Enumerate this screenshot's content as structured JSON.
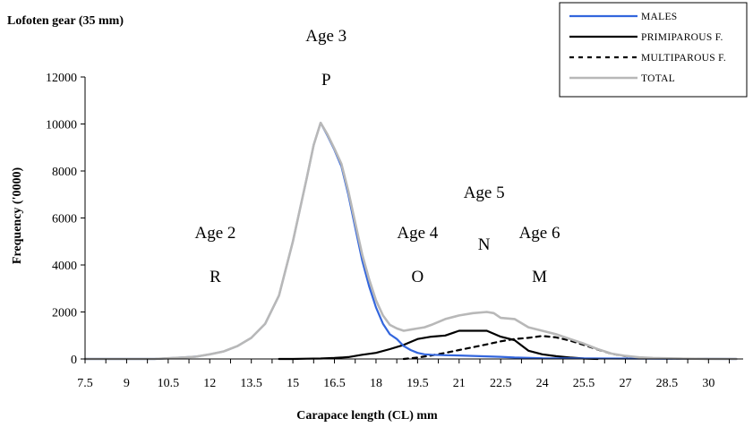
{
  "chart_data": {
    "type": "line",
    "title": "Lofoten gear (35 mm)",
    "xlabel": "Carapace length (CL) mm",
    "ylabel": "Frequency ('0000)",
    "x_tick_labels": [
      "7.5",
      "9",
      "10.5",
      "12",
      "13.5",
      "15",
      "16.5",
      "18",
      "19.5",
      "21",
      "22.5",
      "24",
      "25.5",
      "27",
      "28.5",
      "30"
    ],
    "y_ticks": [
      0,
      2000,
      4000,
      6000,
      8000,
      10000,
      12000
    ],
    "xlim": [
      7.5,
      31.25
    ],
    "ylim": [
      0,
      12000
    ],
    "grid": false,
    "legend_position": "top-right",
    "colors": {
      "MALES": "#3366dd",
      "PRIMIPAROUS F.": "#000000",
      "MULTIPAROUS F.": "#000000",
      "TOTAL": "#b8b8b8"
    },
    "annotations": [
      {
        "age": "Age 2",
        "letter": "R",
        "x": 12.2
      },
      {
        "age": "Age 3",
        "letter": "P",
        "x": 16.2
      },
      {
        "age": "Age 4",
        "letter": "O",
        "x": 19.5
      },
      {
        "age": "Age 5",
        "letter": "N",
        "x": 21.9
      },
      {
        "age": "Age 6",
        "letter": "M",
        "x": 23.9
      }
    ],
    "series": [
      {
        "name": "MALES",
        "style": "solid",
        "x": [
          7.5,
          10.0,
          10.5,
          11.0,
          11.5,
          12.0,
          12.5,
          13.0,
          13.5,
          14.0,
          14.5,
          15.0,
          15.5,
          15.75,
          16.0,
          16.25,
          16.5,
          16.75,
          17.0,
          17.25,
          17.5,
          17.75,
          18.0,
          18.25,
          18.5,
          18.75,
          19.0,
          19.25,
          19.5,
          19.75,
          20.0,
          20.5,
          21.0,
          21.5,
          22.0,
          22.5,
          23.0,
          24.0,
          31.0
        ],
        "y": [
          0,
          0,
          30,
          60,
          100,
          200,
          320,
          550,
          900,
          1500,
          2700,
          5000,
          7700,
          9100,
          10050,
          9500,
          8900,
          8200,
          7000,
          5600,
          4200,
          3100,
          2200,
          1500,
          1050,
          850,
          550,
          380,
          260,
          200,
          180,
          160,
          150,
          130,
          110,
          90,
          60,
          30,
          0
        ]
      },
      {
        "name": "PRIMIPAROUS F.",
        "style": "solid",
        "x": [
          14.5,
          15.0,
          15.5,
          16.0,
          16.5,
          17.0,
          17.5,
          18.0,
          18.5,
          19.0,
          19.5,
          20.0,
          20.5,
          21.0,
          21.5,
          22.0,
          22.5,
          23.0,
          23.5,
          24.0,
          24.5,
          25.0,
          25.5,
          26.0
        ],
        "y": [
          0,
          0,
          10,
          20,
          40,
          80,
          180,
          260,
          420,
          600,
          850,
          950,
          1000,
          1200,
          1200,
          1200,
          950,
          800,
          350,
          200,
          120,
          60,
          20,
          0
        ]
      },
      {
        "name": "MULTIPAROUS F.",
        "style": "dashed",
        "x": [
          19.0,
          19.5,
          20.0,
          20.5,
          21.0,
          21.5,
          22.0,
          22.5,
          23.0,
          23.5,
          24.0,
          24.5,
          25.0,
          25.5,
          26.0,
          26.5,
          27.0,
          27.5,
          28.0,
          29.0,
          30.0
        ],
        "y": [
          0,
          60,
          150,
          260,
          380,
          500,
          620,
          750,
          850,
          900,
          980,
          920,
          780,
          600,
          400,
          220,
          120,
          60,
          30,
          10,
          0
        ]
      },
      {
        "name": "TOTAL",
        "style": "solid",
        "x": [
          7.5,
          10.0,
          10.5,
          11.0,
          11.5,
          12.0,
          12.5,
          13.0,
          13.5,
          14.0,
          14.5,
          15.0,
          15.5,
          15.75,
          16.0,
          16.25,
          16.5,
          16.75,
          17.0,
          17.25,
          17.5,
          17.75,
          18.0,
          18.25,
          18.5,
          18.75,
          19.0,
          19.25,
          19.5,
          19.75,
          20.0,
          20.5,
          21.0,
          21.5,
          22.0,
          22.25,
          22.5,
          23.0,
          23.5,
          24.0,
          24.5,
          25.0,
          25.5,
          26.0,
          26.5,
          27.0,
          27.5,
          28.0,
          29.0,
          30.0,
          31.0
        ],
        "y": [
          0,
          0,
          30,
          60,
          100,
          200,
          320,
          550,
          900,
          1500,
          2700,
          5000,
          7700,
          9100,
          10050,
          9550,
          8950,
          8300,
          7150,
          5800,
          4450,
          3400,
          2500,
          1850,
          1450,
          1300,
          1200,
          1250,
          1300,
          1350,
          1450,
          1700,
          1850,
          1950,
          2000,
          1950,
          1750,
          1700,
          1350,
          1200,
          1050,
          850,
          650,
          420,
          230,
          130,
          70,
          40,
          15,
          5,
          0
        ]
      }
    ]
  }
}
